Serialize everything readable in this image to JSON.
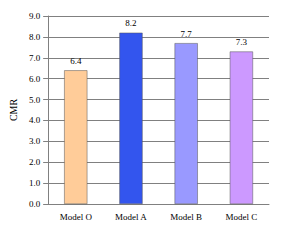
{
  "chart_data": {
    "type": "bar",
    "y_label": "CMR",
    "categories": [
      "Model O",
      "Model A",
      "Model B",
      "Model C"
    ],
    "values": [
      6.4,
      8.2,
      7.7,
      7.3
    ],
    "colors": [
      "#ffcc99",
      "#3355ee",
      "#9999ff",
      "#cc99ff"
    ],
    "ylim": [
      0,
      9
    ],
    "yticks": [
      {
        "value": 0,
        "label": "0.0"
      },
      {
        "value": 1,
        "label": "1.0"
      },
      {
        "value": 2,
        "label": "2.0"
      },
      {
        "value": 3,
        "label": "3.0"
      },
      {
        "value": 4,
        "label": "4.0"
      },
      {
        "value": 5,
        "label": "5.0"
      },
      {
        "value": 6,
        "label": "6.0"
      },
      {
        "value": 7,
        "label": "7.0"
      },
      {
        "value": 8,
        "label": "8.0"
      },
      {
        "value": 9,
        "label": "9.0"
      }
    ],
    "grid": true,
    "data_labels": true
  }
}
